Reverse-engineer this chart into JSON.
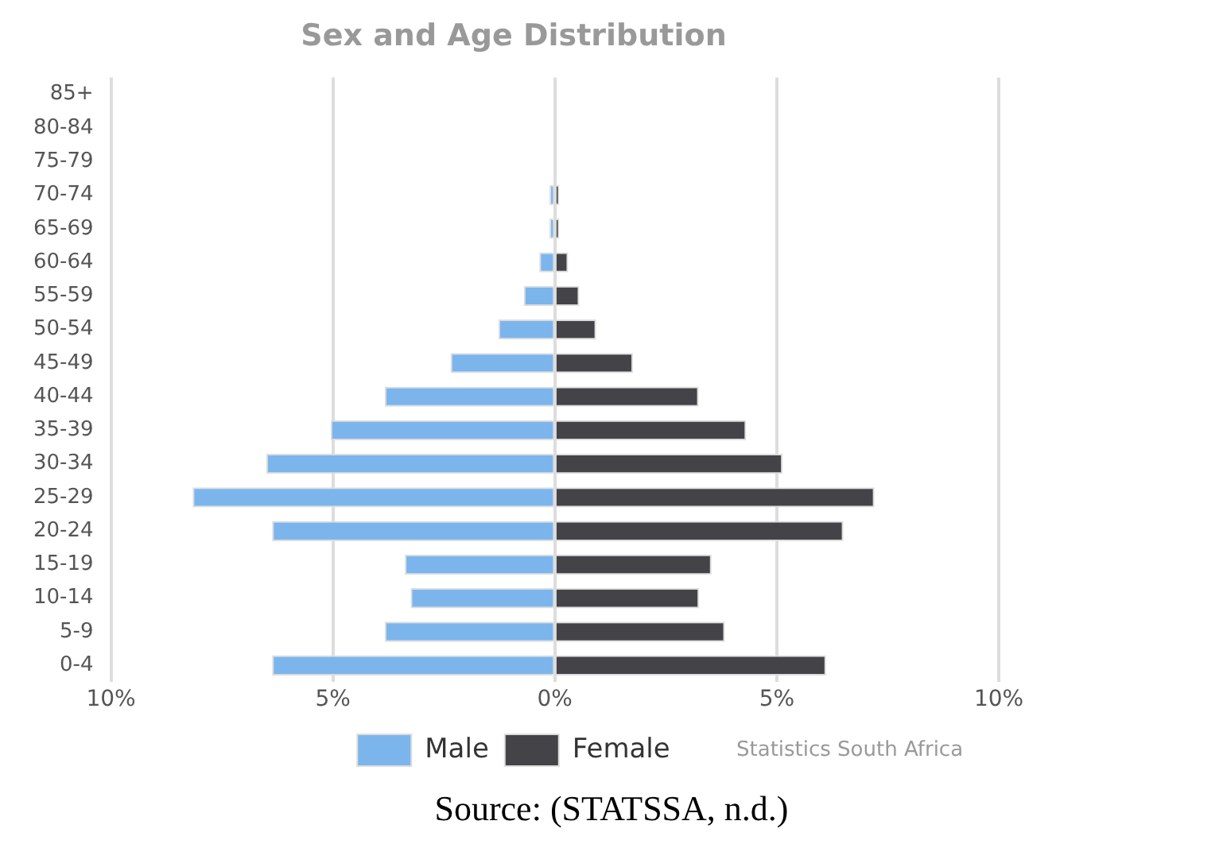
{
  "chart_data": {
    "type": "bar",
    "title": "Sex and Age Distribution",
    "orientation": "horizontal",
    "stacked": true,
    "categories": [
      "85+",
      "80-84",
      "75-79",
      "70-74",
      "65-69",
      "60-64",
      "55-59",
      "50-54",
      "45-49",
      "40-44",
      "35-39",
      "30-34",
      "25-29",
      "20-24",
      "15-19",
      "10-14",
      "5-9",
      "0-4"
    ],
    "series": [
      {
        "name": "Male",
        "color": "#7cb5ec",
        "values": [
          0,
          0,
          0,
          -0.12,
          -0.12,
          -0.35,
          -0.7,
          -1.27,
          -2.35,
          -3.83,
          -5.05,
          -6.5,
          -8.16,
          -6.37,
          -3.38,
          -3.25,
          -3.83,
          -6.37
        ]
      },
      {
        "name": "Female",
        "color": "#434348",
        "values": [
          0,
          0,
          0,
          0.1,
          0.1,
          0.3,
          0.55,
          0.93,
          1.76,
          3.24,
          4.31,
          5.13,
          7.2,
          6.5,
          3.53,
          3.25,
          3.83,
          6.11
        ]
      }
    ],
    "xlim": [
      -10,
      10
    ],
    "xticks": [
      {
        "value": -10,
        "label": "10%"
      },
      {
        "value": -5,
        "label": "5%"
      },
      {
        "value": 0,
        "label": "0%"
      },
      {
        "value": 5,
        "label": "5%"
      },
      {
        "value": 10,
        "label": "10%"
      }
    ],
    "grid": "x",
    "legend": "bottom",
    "annotations": [
      "Statistics South Africa",
      "Source: (STATSSA, n.d.)"
    ]
  }
}
